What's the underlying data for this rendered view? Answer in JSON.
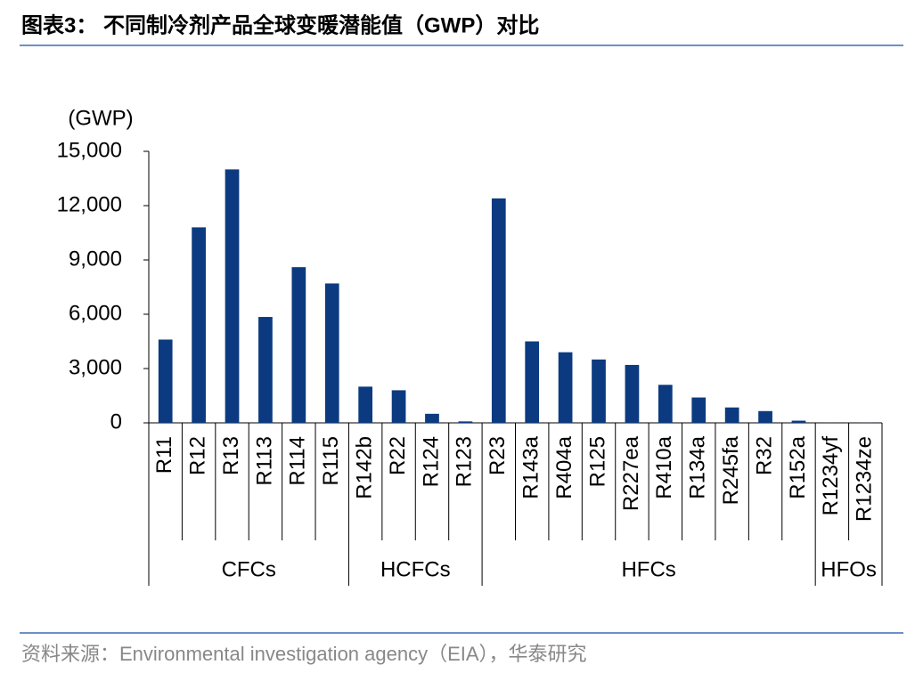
{
  "chart_data": {
    "type": "bar",
    "title": "图表3：  不同制冷剂产品全球变暖潜能值（GWP）对比",
    "y_axis_label": "(GWP)",
    "source": "资料来源：Environmental investigation agency（EIA），华泰研究",
    "color": "#0b3a80",
    "ylim": [
      0,
      15000
    ],
    "yticks": [
      0,
      {
        "value": 3000,
        "label": "3,000"
      },
      {
        "value": 6000,
        "label": "6,000"
      },
      {
        "value": 9000,
        "label": "9,000"
      },
      {
        "value": 12000,
        "label": "12,000"
      },
      {
        "value": 15000,
        "label": "15,000"
      }
    ],
    "groups": [
      {
        "name": "CFCs",
        "categories": [
          "R11",
          "R12",
          "R13",
          "R113",
          "R114",
          "R115"
        ],
        "values": [
          4600,
          10800,
          14000,
          5850,
          8600,
          7700
        ]
      },
      {
        "name": "HCFCs",
        "categories": [
          "R142b",
          "R22",
          "R124",
          "R123"
        ],
        "values": [
          2000,
          1800,
          500,
          80
        ]
      },
      {
        "name": "HFCs",
        "categories": [
          "R23",
          "R143a",
          "R404a",
          "R125",
          "R227ea",
          "R410a",
          "R134a",
          "R245fa",
          "R32",
          "R152a"
        ],
        "values": [
          12400,
          4500,
          3900,
          3500,
          3200,
          2100,
          1400,
          850,
          650,
          120
        ]
      },
      {
        "name": "HFOs",
        "categories": [
          "R1234yf",
          "R1234ze"
        ],
        "values": [
          4,
          6
        ]
      }
    ]
  }
}
